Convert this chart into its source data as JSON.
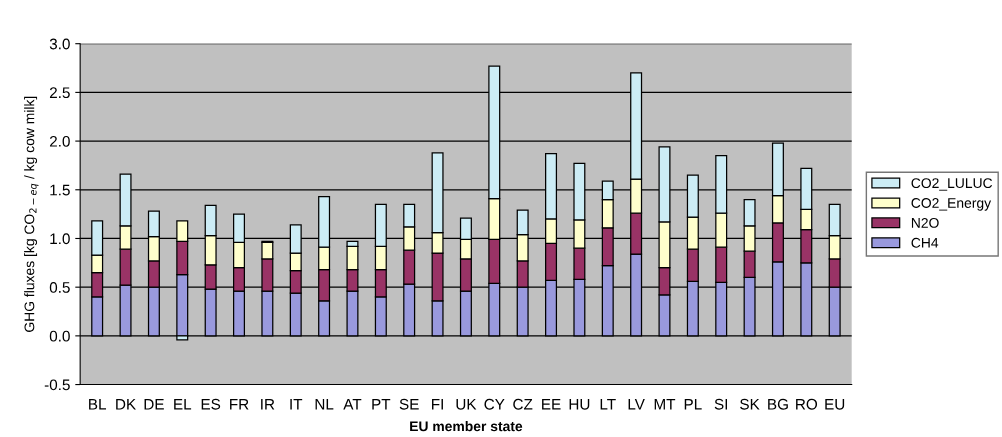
{
  "chart_data": {
    "type": "bar",
    "stacked": true,
    "xlabel": "EU member state",
    "ylabel": "GHG fluxes [kg CO$_{2−eq}$ / kg cow milk]",
    "categories": [
      "BL",
      "DK",
      "DE",
      "EL",
      "ES",
      "FR",
      "IR",
      "IT",
      "NL",
      "AT",
      "PT",
      "SE",
      "FI",
      "UK",
      "CY",
      "CZ",
      "EE",
      "HU",
      "LT",
      "LV",
      "MT",
      "PL",
      "SI",
      "SK",
      "BG",
      "RO",
      "EU"
    ],
    "series": [
      {
        "name": "CH4",
        "color": "#9999dd",
        "values": [
          0.4,
          0.52,
          0.5,
          0.63,
          0.48,
          0.46,
          0.46,
          0.44,
          0.36,
          0.46,
          0.4,
          0.53,
          0.36,
          0.46,
          0.54,
          0.5,
          0.57,
          0.58,
          0.72,
          0.84,
          0.42,
          0.56,
          0.55,
          0.6,
          0.76,
          0.75,
          0.5
        ]
      },
      {
        "name": "N2O",
        "color": "#993366",
        "values": [
          0.25,
          0.37,
          0.27,
          0.34,
          0.25,
          0.24,
          0.33,
          0.23,
          0.32,
          0.22,
          0.28,
          0.35,
          0.49,
          0.33,
          0.45,
          0.27,
          0.38,
          0.32,
          0.39,
          0.42,
          0.28,
          0.33,
          0.36,
          0.27,
          0.4,
          0.34,
          0.29
        ]
      },
      {
        "name": "CO2_Energy",
        "color": "#ffffcc",
        "values": [
          0.18,
          0.24,
          0.25,
          0.21,
          0.3,
          0.26,
          0.17,
          0.18,
          0.23,
          0.24,
          0.24,
          0.24,
          0.21,
          0.2,
          0.42,
          0.27,
          0.25,
          0.29,
          0.29,
          0.35,
          0.47,
          0.33,
          0.35,
          0.26,
          0.28,
          0.21,
          0.24
        ]
      },
      {
        "name": "CO2_LULUC",
        "color": "#ccecf5",
        "values": [
          0.35,
          0.53,
          0.26,
          -0.04,
          0.31,
          0.29,
          0.01,
          0.29,
          0.52,
          0.05,
          0.43,
          0.23,
          0.82,
          0.22,
          1.36,
          0.25,
          0.67,
          0.58,
          0.19,
          1.09,
          0.77,
          0.43,
          0.59,
          0.27,
          0.54,
          0.42,
          0.32
        ]
      }
    ],
    "ylim": [
      -0.5,
      3.0
    ],
    "yticks": [
      {
        "value": -0.5,
        "label": "-0.5"
      },
      {
        "value": 0,
        "label": "0.0"
      },
      {
        "value": 0.5,
        "label": "0.5"
      },
      {
        "value": 1.0,
        "label": "1.0"
      },
      {
        "value": 1.5,
        "label": "1.5"
      },
      {
        "value": 2.0,
        "label": "2.0"
      },
      {
        "value": 2.5,
        "label": "2.5"
      },
      {
        "value": 3.0,
        "label": "3.0"
      }
    ],
    "grid": "y",
    "legend": "right"
  }
}
